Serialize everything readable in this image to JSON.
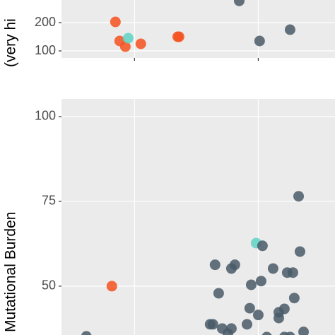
{
  "chart_data": [
    {
      "type": "scatter",
      "ylabel": "(very hi",
      "xlim": [
        0.41,
        2.62
      ],
      "xticks": [
        1,
        2
      ],
      "ylim": [
        75,
        280
      ],
      "yticks": [
        100,
        200
      ],
      "grid": true,
      "series": [
        {
          "color": "#f4511e",
          "x": [
            0.846,
            0.88,
            0.926,
            1.051,
            1.349,
            1.36
          ],
          "values": [
            202.5,
            135,
            115,
            125,
            150,
            150
          ]
        },
        {
          "color": "#5fd3c4",
          "x": [
            0.949
          ],
          "values": [
            145
          ]
        },
        {
          "color": "#4a5a68",
          "x": [
            1.846,
            2.011,
            2.257
          ],
          "values": [
            277,
            135,
            175
          ]
        }
      ]
    },
    {
      "type": "scatter",
      "ylabel": "Mutational Burden",
      "xlim": [
        0.41,
        2.62
      ],
      "xticks": [
        1,
        2
      ],
      "ylim": [
        35.6,
        105.2
      ],
      "yticks": [
        50,
        75,
        100
      ],
      "grid": true,
      "series": [
        {
          "color": "#f4511e",
          "x": [
            0.817
          ],
          "values": [
            50
          ]
        },
        {
          "color": "#5fd3c4",
          "x": [
            1.983
          ],
          "values": [
            62.7
          ]
        },
        {
          "color": "#4a5a68",
          "x": [
            2.034,
            2.326,
            2.337,
            1.651,
            1.783,
            1.811,
            1.68,
            2.12,
            2.234,
            2.28,
            1.943,
            2.023,
            2.291,
            1.931,
            2.0,
            2.166,
            2.211,
            2.166,
            1.611,
            1.634,
            1.709,
            1.783,
            1.754,
            1.909,
            2.366,
            2.069,
            2.211,
            2.257,
            0.611
          ],
          "values": [
            61.9,
            76.5,
            60.2,
            56.3,
            55.2,
            56.3,
            47.9,
            55.2,
            54,
            54,
            50.4,
            51.5,
            46.5,
            43.5,
            41.5,
            42.3,
            43.3,
            40.6,
            38.75,
            38.75,
            37.5,
            37.5,
            36,
            38.75,
            36.5,
            35,
            35,
            35,
            35.2
          ]
        }
      ]
    }
  ]
}
